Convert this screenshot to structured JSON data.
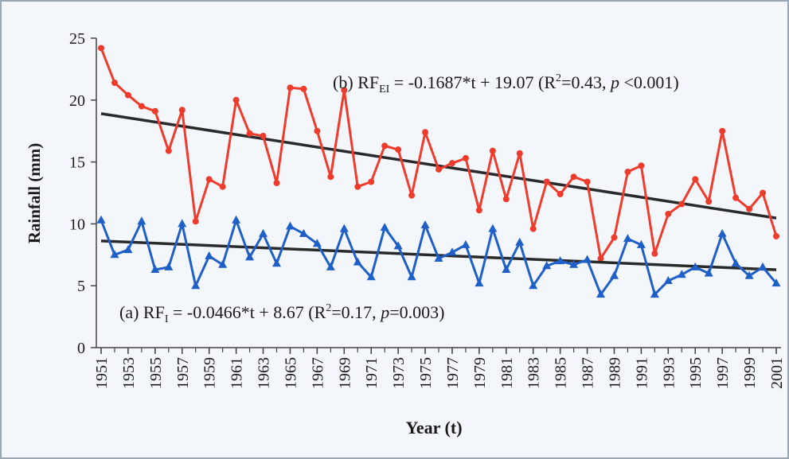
{
  "chart_data": {
    "type": "line",
    "x_label": "Year (t)",
    "y_label": "Rainfall (mm)",
    "x": [
      1951,
      1952,
      1953,
      1954,
      1955,
      1956,
      1957,
      1958,
      1959,
      1960,
      1961,
      1962,
      1963,
      1964,
      1965,
      1966,
      1967,
      1968,
      1969,
      1970,
      1971,
      1972,
      1973,
      1974,
      1975,
      1976,
      1977,
      1978,
      1979,
      1980,
      1981,
      1982,
      1983,
      1984,
      1985,
      1986,
      1987,
      1988,
      1989,
      1990,
      1991,
      1992,
      1993,
      1994,
      1995,
      1996,
      1997,
      1998,
      1999,
      2000,
      2001
    ],
    "series": [
      {
        "color": "#ef3b2c",
        "marker": "circle",
        "values": [
          24.2,
          21.4,
          20.4,
          19.5,
          19.1,
          15.9,
          19.2,
          10.2,
          13.6,
          13.0,
          20.0,
          17.3,
          17.1,
          13.3,
          21.0,
          20.9,
          17.5,
          13.8,
          20.8,
          13.0,
          13.4,
          16.3,
          16.0,
          12.3,
          17.4,
          14.4,
          14.9,
          15.3,
          11.1,
          15.9,
          12.0,
          15.7,
          9.6,
          13.4,
          12.4,
          13.8,
          13.4,
          7.2,
          8.9,
          14.2,
          14.7,
          7.6,
          10.8,
          11.6,
          13.6,
          11.8,
          17.5,
          12.1,
          11.2,
          12.5,
          9.0
        ],
        "trend": {
          "slope": -0.1687,
          "intercept": 19.07
        },
        "annotation": [
          "(b) RF",
          "EI",
          " = -0.1687*t + 19.07 (R",
          "2",
          "=0.43, ",
          "p",
          " <0.001)"
        ]
      },
      {
        "color": "#1f5fc8",
        "marker": "triangle",
        "values": [
          10.3,
          7.5,
          7.9,
          10.2,
          6.3,
          6.5,
          10.0,
          5.0,
          7.4,
          6.7,
          10.3,
          7.3,
          9.2,
          6.8,
          9.8,
          9.2,
          8.4,
          6.5,
          9.6,
          6.9,
          5.7,
          9.7,
          8.2,
          5.7,
          9.9,
          7.2,
          7.7,
          8.3,
          5.2,
          9.6,
          6.3,
          8.5,
          5.0,
          6.6,
          7.0,
          6.7,
          7.1,
          4.3,
          5.8,
          8.8,
          8.3,
          4.3,
          5.4,
          5.9,
          6.5,
          6.0,
          9.2,
          6.8,
          5.8,
          6.5,
          5.2
        ],
        "trend": {
          "slope": -0.0466,
          "intercept": 8.67
        },
        "annotation": [
          "(a) RF",
          "I",
          " = -0.0466*t + 8.67 (R",
          "2",
          "=0.17, ",
          "p",
          "=0.003)"
        ]
      }
    ],
    "trend_color": "#2a2a2a",
    "xlim": [
      1951,
      2001
    ],
    "xticks": [
      1951,
      1953,
      1955,
      1957,
      1959,
      1961,
      1963,
      1965,
      1967,
      1969,
      1971,
      1973,
      1975,
      1977,
      1979,
      1981,
      1983,
      1985,
      1987,
      1989,
      1991,
      1993,
      1995,
      1997,
      1999,
      2001
    ],
    "ylim": [
      0,
      25
    ],
    "yticks": [
      0,
      5,
      10,
      15,
      20,
      25
    ]
  }
}
